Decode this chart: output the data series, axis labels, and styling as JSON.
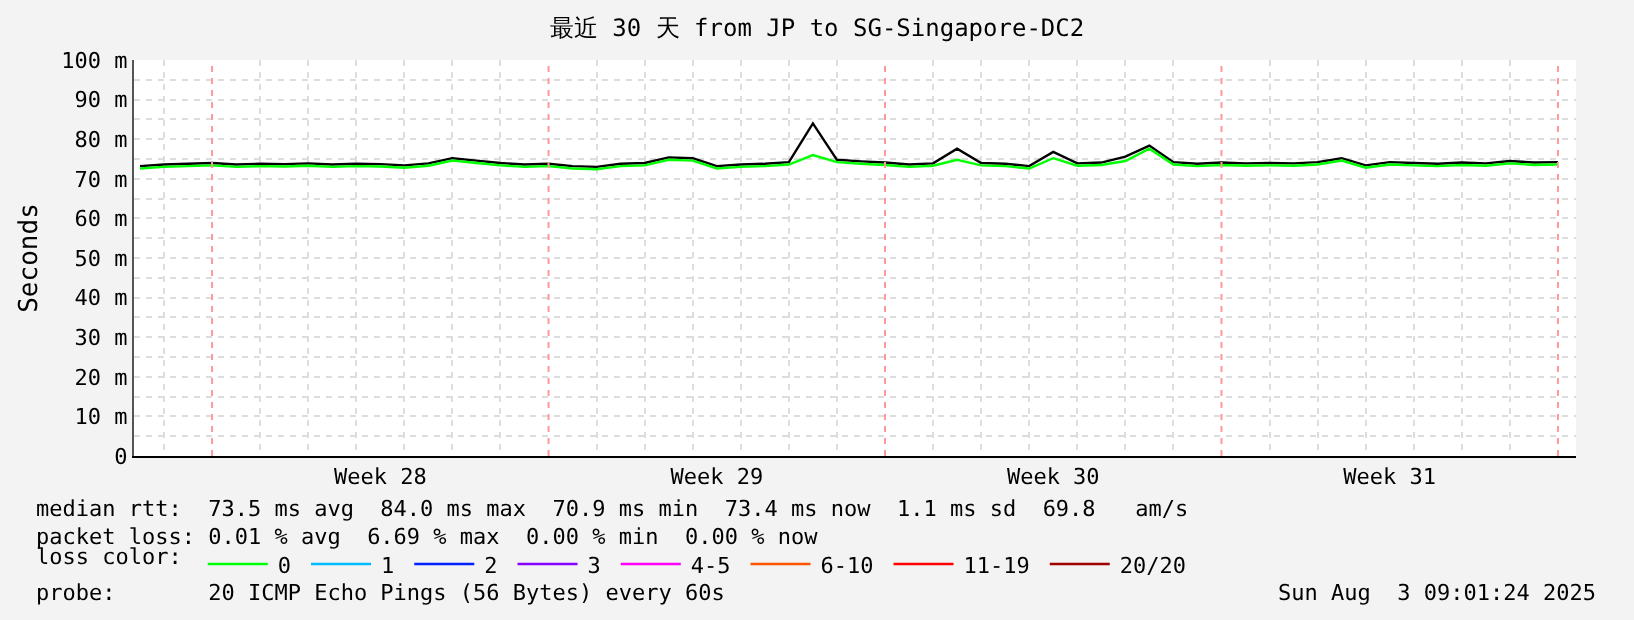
{
  "chart_data": {
    "type": "line",
    "title": "最近 30 天 from JP to SG-Singapore-DC2",
    "ylabel": "Seconds",
    "x": [
      "2025-07-04T12:00",
      "2025-07-05T00:00",
      "2025-07-05T12:00",
      "2025-07-06T00:00",
      "2025-07-06T12:00",
      "2025-07-07T00:00",
      "2025-07-07T12:00",
      "2025-07-08T00:00",
      "2025-07-08T12:00",
      "2025-07-09T00:00",
      "2025-07-09T12:00",
      "2025-07-10T00:00",
      "2025-07-10T12:00",
      "2025-07-11T00:00",
      "2025-07-11T12:00",
      "2025-07-12T00:00",
      "2025-07-12T12:00",
      "2025-07-13T00:00",
      "2025-07-13T12:00",
      "2025-07-14T00:00",
      "2025-07-14T12:00",
      "2025-07-15T00:00",
      "2025-07-15T12:00",
      "2025-07-16T00:00",
      "2025-07-16T12:00",
      "2025-07-17T00:00",
      "2025-07-17T12:00",
      "2025-07-18T00:00",
      "2025-07-18T12:00",
      "2025-07-19T00:00",
      "2025-07-19T12:00",
      "2025-07-20T00:00",
      "2025-07-20T12:00",
      "2025-07-21T00:00",
      "2025-07-21T12:00",
      "2025-07-22T00:00",
      "2025-07-22T12:00",
      "2025-07-23T00:00",
      "2025-07-23T12:00",
      "2025-07-24T00:00",
      "2025-07-24T12:00",
      "2025-07-25T00:00",
      "2025-07-25T12:00",
      "2025-07-26T00:00",
      "2025-07-26T12:00",
      "2025-07-27T00:00",
      "2025-07-27T12:00",
      "2025-07-28T00:00",
      "2025-07-28T12:00",
      "2025-07-29T00:00",
      "2025-07-29T12:00",
      "2025-07-30T00:00",
      "2025-07-30T12:00",
      "2025-07-31T00:00",
      "2025-07-31T12:00",
      "2025-08-01T00:00",
      "2025-08-01T12:00",
      "2025-08-02T00:00",
      "2025-08-02T12:00",
      "2025-08-03T00:00"
    ],
    "series": [
      {
        "color": "#000000",
        "values": [
          73.2,
          73.6,
          73.8,
          74.0,
          73.6,
          73.8,
          73.7,
          73.9,
          73.6,
          73.8,
          73.7,
          73.4,
          73.9,
          75.2,
          74.6,
          74.0,
          73.6,
          73.8,
          73.2,
          73.0,
          73.8,
          74.0,
          75.4,
          75.2,
          73.2,
          73.6,
          73.8,
          74.2,
          84.0,
          74.8,
          74.4,
          74.1,
          73.6,
          73.9,
          77.6,
          74.0,
          73.8,
          73.2,
          76.8,
          73.9,
          74.1,
          75.6,
          78.4,
          74.2,
          73.8,
          74.1,
          73.9,
          74.0,
          73.9,
          74.2,
          75.2,
          73.4,
          74.2,
          74.0,
          73.8,
          74.1,
          73.9,
          74.5,
          74.1,
          74.2
        ]
      },
      {
        "name": "0",
        "color": "#00ff00",
        "values": [
          72.6,
          73.0,
          73.2,
          73.4,
          73.0,
          73.2,
          73.1,
          73.3,
          73.0,
          73.2,
          73.1,
          72.8,
          73.3,
          74.6,
          74.0,
          73.4,
          73.0,
          73.2,
          72.6,
          72.4,
          73.2,
          73.4,
          74.8,
          74.6,
          72.6,
          73.0,
          73.2,
          73.6,
          76.0,
          74.2,
          73.8,
          73.5,
          73.0,
          73.3,
          74.8,
          73.4,
          73.2,
          72.6,
          75.2,
          73.3,
          73.5,
          74.5,
          77.6,
          73.6,
          73.2,
          73.5,
          73.3,
          73.4,
          73.3,
          73.6,
          74.6,
          72.8,
          73.6,
          73.4,
          73.2,
          73.5,
          73.3,
          73.9,
          73.5,
          73.6
        ]
      },
      {
        "name": "1",
        "color": "#00bbff",
        "values": [
          null,
          null,
          null,
          null,
          null,
          null,
          null,
          null,
          null,
          null,
          null,
          null,
          null,
          null,
          null,
          null,
          null,
          null,
          null,
          null,
          null,
          null,
          null,
          null,
          null,
          null,
          null,
          null,
          null,
          null,
          null,
          null,
          null,
          null,
          null,
          null,
          null,
          null,
          null,
          null,
          null,
          null,
          null,
          null,
          null,
          null,
          null,
          null,
          null,
          null,
          null,
          null,
          null,
          null,
          null,
          null,
          null,
          null,
          null,
          null
        ]
      },
      {
        "name": "2",
        "color": "#0022ff",
        "values": [
          null,
          null,
          null,
          null,
          null,
          null,
          null,
          null,
          null,
          null,
          null,
          null,
          null,
          null,
          null,
          null,
          null,
          null,
          null,
          null,
          null,
          null,
          null,
          null,
          null,
          null,
          null,
          null,
          null,
          null,
          null,
          null,
          null,
          null,
          null,
          null,
          null,
          null,
          null,
          null,
          null,
          null,
          null,
          null,
          null,
          null,
          null,
          null,
          null,
          null,
          null,
          null,
          null,
          null,
          null,
          null,
          null,
          null,
          null,
          null
        ]
      },
      {
        "name": "3",
        "color": "#8800ff",
        "values": [
          null,
          null,
          null,
          null,
          null,
          null,
          null,
          null,
          null,
          null,
          null,
          null,
          null,
          null,
          null,
          null,
          null,
          null,
          null,
          null,
          null,
          null,
          null,
          null,
          null,
          null,
          null,
          null,
          null,
          null,
          null,
          null,
          null,
          null,
          null,
          null,
          null,
          null,
          null,
          null,
          null,
          null,
          null,
          null,
          null,
          null,
          null,
          null,
          null,
          null,
          null,
          null,
          null,
          null,
          null,
          null,
          null,
          null,
          null,
          null
        ]
      },
      {
        "name": "4-5",
        "color": "#ff00ff",
        "values": [
          null,
          null,
          null,
          null,
          null,
          null,
          null,
          null,
          null,
          null,
          null,
          null,
          null,
          null,
          null,
          null,
          null,
          null,
          null,
          null,
          null,
          null,
          null,
          null,
          null,
          null,
          null,
          null,
          null,
          null,
          null,
          null,
          null,
          null,
          null,
          null,
          null,
          null,
          null,
          null,
          null,
          null,
          null,
          null,
          null,
          null,
          null,
          null,
          null,
          null,
          null,
          null,
          null,
          null,
          null,
          null,
          null,
          null,
          null,
          null
        ]
      },
      {
        "name": "6-10",
        "color": "#ff5500",
        "values": [
          null,
          null,
          null,
          null,
          null,
          null,
          null,
          null,
          null,
          null,
          null,
          null,
          null,
          null,
          null,
          null,
          null,
          null,
          null,
          null,
          null,
          null,
          null,
          null,
          null,
          null,
          null,
          null,
          null,
          null,
          null,
          null,
          null,
          null,
          null,
          null,
          null,
          null,
          null,
          null,
          null,
          null,
          null,
          null,
          null,
          null,
          null,
          null,
          null,
          null,
          null,
          null,
          null,
          null,
          null,
          null,
          null,
          null,
          null,
          null
        ]
      },
      {
        "name": "11-19",
        "color": "#ff0000",
        "values": [
          null,
          null,
          null,
          null,
          null,
          null,
          null,
          null,
          null,
          null,
          null,
          null,
          null,
          null,
          null,
          null,
          null,
          null,
          null,
          null,
          null,
          null,
          null,
          null,
          null,
          null,
          null,
          null,
          null,
          null,
          null,
          null,
          null,
          null,
          null,
          null,
          null,
          null,
          null,
          null,
          null,
          null,
          null,
          null,
          null,
          null,
          null,
          null,
          null,
          null,
          null,
          null,
          null,
          null,
          null,
          null,
          null,
          null,
          null,
          null
        ]
      },
      {
        "name": "20/20",
        "color": "#a10000",
        "values": [
          null,
          null,
          null,
          null,
          null,
          null,
          null,
          null,
          null,
          null,
          null,
          null,
          null,
          null,
          null,
          null,
          null,
          null,
          null,
          null,
          null,
          null,
          null,
          null,
          null,
          null,
          null,
          null,
          null,
          null,
          null,
          null,
          null,
          null,
          null,
          null,
          null,
          null,
          null,
          null,
          null,
          null,
          null,
          null,
          null,
          null,
          null,
          null,
          null,
          null,
          null,
          null,
          null,
          null,
          null,
          null,
          null,
          null,
          null,
          null
        ]
      }
    ],
    "legend": "bottom",
    "legend_title": "loss color:",
    "xlim": [
      "2025-07-04T09:01",
      "2025-08-03T09:01"
    ],
    "xticks": [
      {
        "value": "2025-07-05T00:00",
        "label": null
      },
      {
        "value": "2025-07-07T00:00",
        "label": null
      },
      {
        "value": "2025-07-08T00:00",
        "label": null
      },
      {
        "value": "2025-07-09T00:00",
        "label": null
      },
      {
        "value": "2025-07-10T00:00",
        "label": null
      },
      {
        "value": "2025-07-11T00:00",
        "label": null
      },
      {
        "value": "2025-07-12T00:00",
        "label": null
      },
      {
        "value": "2025-07-14T00:00",
        "label": null
      },
      {
        "value": "2025-07-15T00:00",
        "label": null
      },
      {
        "value": "2025-07-16T00:00",
        "label": null
      },
      {
        "value": "2025-07-17T00:00",
        "label": null
      },
      {
        "value": "2025-07-18T00:00",
        "label": null
      },
      {
        "value": "2025-07-19T00:00",
        "label": null
      },
      {
        "value": "2025-07-21T00:00",
        "label": null
      },
      {
        "value": "2025-07-22T00:00",
        "label": null
      },
      {
        "value": "2025-07-23T00:00",
        "label": null
      },
      {
        "value": "2025-07-24T00:00",
        "label": null
      },
      {
        "value": "2025-07-25T00:00",
        "label": null
      },
      {
        "value": "2025-07-26T00:00",
        "label": null
      },
      {
        "value": "2025-07-28T00:00",
        "label": null
      },
      {
        "value": "2025-07-29T00:00",
        "label": null
      },
      {
        "value": "2025-07-30T00:00",
        "label": null
      },
      {
        "value": "2025-07-31T00:00",
        "label": null
      },
      {
        "value": "2025-08-01T00:00",
        "label": null
      },
      {
        "value": "2025-08-02T00:00",
        "label": null
      },
      {
        "value": "2025-07-09T12:00",
        "label": "Week 28"
      },
      {
        "value": "2025-07-16T12:00",
        "label": "Week 29"
      },
      {
        "value": "2025-07-23T12:00",
        "label": "Week 30"
      },
      {
        "value": "2025-07-30T12:00",
        "label": "Week 31"
      }
    ],
    "ylim": [
      0,
      100
    ],
    "yticks": [
      0,
      {
        "value": 5,
        "label": null
      },
      {
        "value": 10,
        "label": "10 m"
      },
      {
        "value": 15,
        "label": null
      },
      {
        "value": 20,
        "label": "20 m"
      },
      {
        "value": 25,
        "label": null
      },
      {
        "value": 30,
        "label": "30 m"
      },
      {
        "value": 35,
        "label": null
      },
      {
        "value": 40,
        "label": "40 m"
      },
      {
        "value": 45,
        "label": null
      },
      {
        "value": 50,
        "label": "50 m"
      },
      {
        "value": 55,
        "label": null
      },
      {
        "value": 60,
        "label": "60 m"
      },
      {
        "value": 65,
        "label": null
      },
      {
        "value": 70,
        "label": "70 m"
      },
      {
        "value": 75,
        "label": null
      },
      {
        "value": 80,
        "label": "80 m"
      },
      {
        "value": 85,
        "label": null
      },
      {
        "value": 90,
        "label": "90 m"
      },
      {
        "value": 95,
        "label": null
      },
      {
        "value": 100,
        "label": "100 m"
      }
    ],
    "grid": true,
    "marker": "none",
    "line_style": "solid",
    "ref_lines": [
      {
        "axis": "x",
        "value": "2025-07-06T00:00",
        "color": "#ff9999",
        "line_style": "dotted"
      },
      {
        "axis": "x",
        "value": "2025-07-13T00:00",
        "color": "#ff9999",
        "line_style": "dotted"
      },
      {
        "axis": "x",
        "value": "2025-07-20T00:00",
        "color": "#ff9999",
        "line_style": "dotted"
      },
      {
        "axis": "x",
        "value": "2025-07-27T00:00",
        "color": "#ff9999",
        "line_style": "dotted"
      },
      {
        "axis": "x",
        "value": "2025-08-03T00:00",
        "color": "#ff9999",
        "line_style": "dotted"
      }
    ],
    "annotations": [
      "median rtt:  73.5 ms avg  84.0 ms max  70.9 ms min  73.4 ms now  1.1 ms sd  69.8   am/s",
      "packet loss: 0.01 % avg  6.69 % max  0.00 % min  0.00 % now",
      "probe:       20 ICMP Echo Pings (56 Bytes) every 60s",
      "Sun Aug  3 09:01:24 2025"
    ]
  }
}
